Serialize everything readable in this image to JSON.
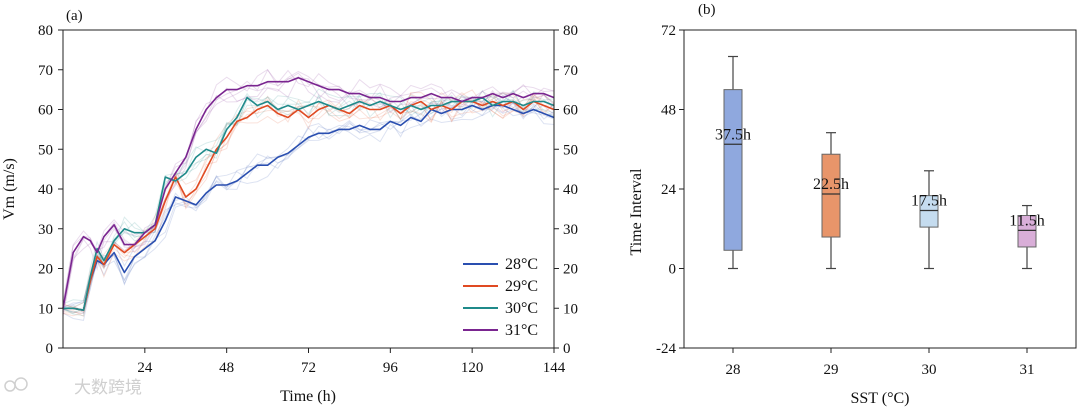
{
  "watermark": "大数跨境",
  "chart_data": [
    {
      "panel_label": "(a)",
      "type": "line",
      "xlabel": "Time (h)",
      "ylabel": "Vm (m/s)",
      "xlim": [
        0,
        144
      ],
      "ylim": [
        0,
        80
      ],
      "xticks": [
        "24",
        "48",
        "72",
        "96",
        "120",
        "144"
      ],
      "yticks": [
        "0",
        "10",
        "20",
        "30",
        "40",
        "50",
        "60",
        "70",
        "80"
      ],
      "legend_position": "bottom-right",
      "series": [
        {
          "name": "28°C",
          "color": "#2a4fb0",
          "x": [
            0,
            3,
            6,
            8,
            10,
            12,
            15,
            18,
            21,
            24,
            27,
            30,
            33,
            36,
            39,
            42,
            45,
            48,
            51,
            54,
            57,
            60,
            63,
            66,
            69,
            72,
            75,
            78,
            81,
            84,
            87,
            90,
            93,
            96,
            99,
            102,
            105,
            108,
            111,
            114,
            117,
            120,
            123,
            126,
            129,
            132,
            135,
            138,
            141,
            144
          ],
          "y": [
            10,
            10,
            9.5,
            17,
            22,
            21,
            24,
            19,
            23,
            25,
            27,
            32,
            38,
            37,
            36,
            39,
            41,
            41,
            42,
            44,
            46,
            46,
            48,
            49,
            51,
            53,
            54,
            54,
            55,
            55,
            56,
            55,
            55,
            57,
            56,
            58,
            57,
            60,
            59,
            60,
            60,
            61,
            60,
            61,
            61,
            60,
            59,
            60,
            59,
            58
          ]
        },
        {
          "name": "29°C",
          "color": "#e04a22",
          "x": [
            0,
            3,
            6,
            8,
            10,
            12,
            15,
            18,
            21,
            24,
            27,
            30,
            33,
            36,
            39,
            42,
            45,
            48,
            51,
            54,
            57,
            60,
            63,
            66,
            69,
            72,
            75,
            78,
            81,
            84,
            87,
            90,
            93,
            96,
            99,
            102,
            105,
            108,
            111,
            114,
            117,
            120,
            123,
            126,
            129,
            132,
            135,
            138,
            141,
            144
          ],
          "y": [
            10,
            10,
            9.5,
            17,
            23,
            21,
            26,
            24,
            26,
            28,
            30,
            37,
            43,
            38,
            40,
            45,
            50,
            53,
            57,
            58,
            60,
            61,
            59,
            58,
            60,
            58,
            60,
            61,
            60,
            59,
            61,
            60,
            60,
            61,
            59,
            61,
            62,
            60,
            61,
            60,
            62,
            62,
            61,
            62,
            61,
            62,
            60,
            62,
            61,
            60
          ]
        },
        {
          "name": "30°C",
          "color": "#1f8a8a",
          "x": [
            0,
            3,
            6,
            8,
            10,
            12,
            15,
            18,
            21,
            24,
            27,
            30,
            33,
            36,
            39,
            42,
            45,
            48,
            51,
            54,
            57,
            60,
            63,
            66,
            69,
            72,
            75,
            78,
            81,
            84,
            87,
            90,
            93,
            96,
            99,
            102,
            105,
            108,
            111,
            114,
            117,
            120,
            123,
            126,
            129,
            132,
            135,
            138,
            141,
            144
          ],
          "y": [
            10,
            10,
            9.5,
            18,
            25,
            22,
            27,
            30,
            29,
            29,
            31,
            43,
            42,
            44,
            48,
            50,
            49,
            55,
            58,
            63,
            61,
            62,
            60,
            61,
            60,
            61,
            62,
            61,
            60,
            61,
            62,
            61,
            62,
            61,
            60,
            61,
            60,
            61,
            61,
            62,
            62,
            62,
            63,
            61,
            62,
            62,
            61,
            62,
            62,
            61
          ]
        },
        {
          "name": "31°C",
          "color": "#7a2590",
          "x": [
            0,
            3,
            6,
            8,
            10,
            12,
            15,
            18,
            21,
            24,
            27,
            30,
            33,
            36,
            39,
            42,
            45,
            48,
            51,
            54,
            57,
            60,
            63,
            66,
            69,
            72,
            75,
            78,
            81,
            84,
            87,
            90,
            93,
            96,
            99,
            102,
            105,
            108,
            111,
            114,
            117,
            120,
            123,
            126,
            129,
            132,
            135,
            138,
            141,
            144
          ],
          "y": [
            10,
            24,
            28,
            27,
            24,
            28,
            31,
            26,
            26,
            29,
            31,
            40,
            44,
            48,
            55,
            60,
            63,
            65,
            65,
            66,
            66,
            67,
            67,
            67,
            68,
            67,
            66,
            65,
            65,
            64,
            64,
            63,
            63,
            62,
            62,
            63,
            63,
            64,
            63,
            63,
            62,
            63,
            63,
            64,
            63,
            64,
            63,
            64,
            64,
            63
          ]
        }
      ]
    },
    {
      "panel_label": "(b)",
      "type": "box",
      "xlabel": "SST (°C)",
      "ylabel": "Time Interval",
      "ylim": [
        -24,
        72
      ],
      "yticks": [
        "-24",
        "0",
        "24",
        "48",
        "72"
      ],
      "categories": [
        "28",
        "29",
        "30",
        "31"
      ],
      "boxes": [
        {
          "category": "28",
          "min": 0,
          "q1": 5.5,
          "median": 37.5,
          "q3": 54,
          "max": 64,
          "label": "37.5h",
          "color": "#8fa8de"
        },
        {
          "category": "29",
          "min": 0,
          "q1": 9.5,
          "median": 22.5,
          "q3": 34.5,
          "max": 41,
          "label": "22.5h",
          "color": "#e8956a"
        },
        {
          "category": "30",
          "min": 0,
          "q1": 12.5,
          "median": 17.5,
          "q3": 22,
          "max": 29.5,
          "label": "17.5h",
          "color": "#c5dcef"
        },
        {
          "category": "31",
          "min": 0,
          "q1": 6.5,
          "median": 11.5,
          "q3": 16,
          "max": 19,
          "label": "11.5h",
          "color": "#d9aed8"
        }
      ]
    }
  ]
}
